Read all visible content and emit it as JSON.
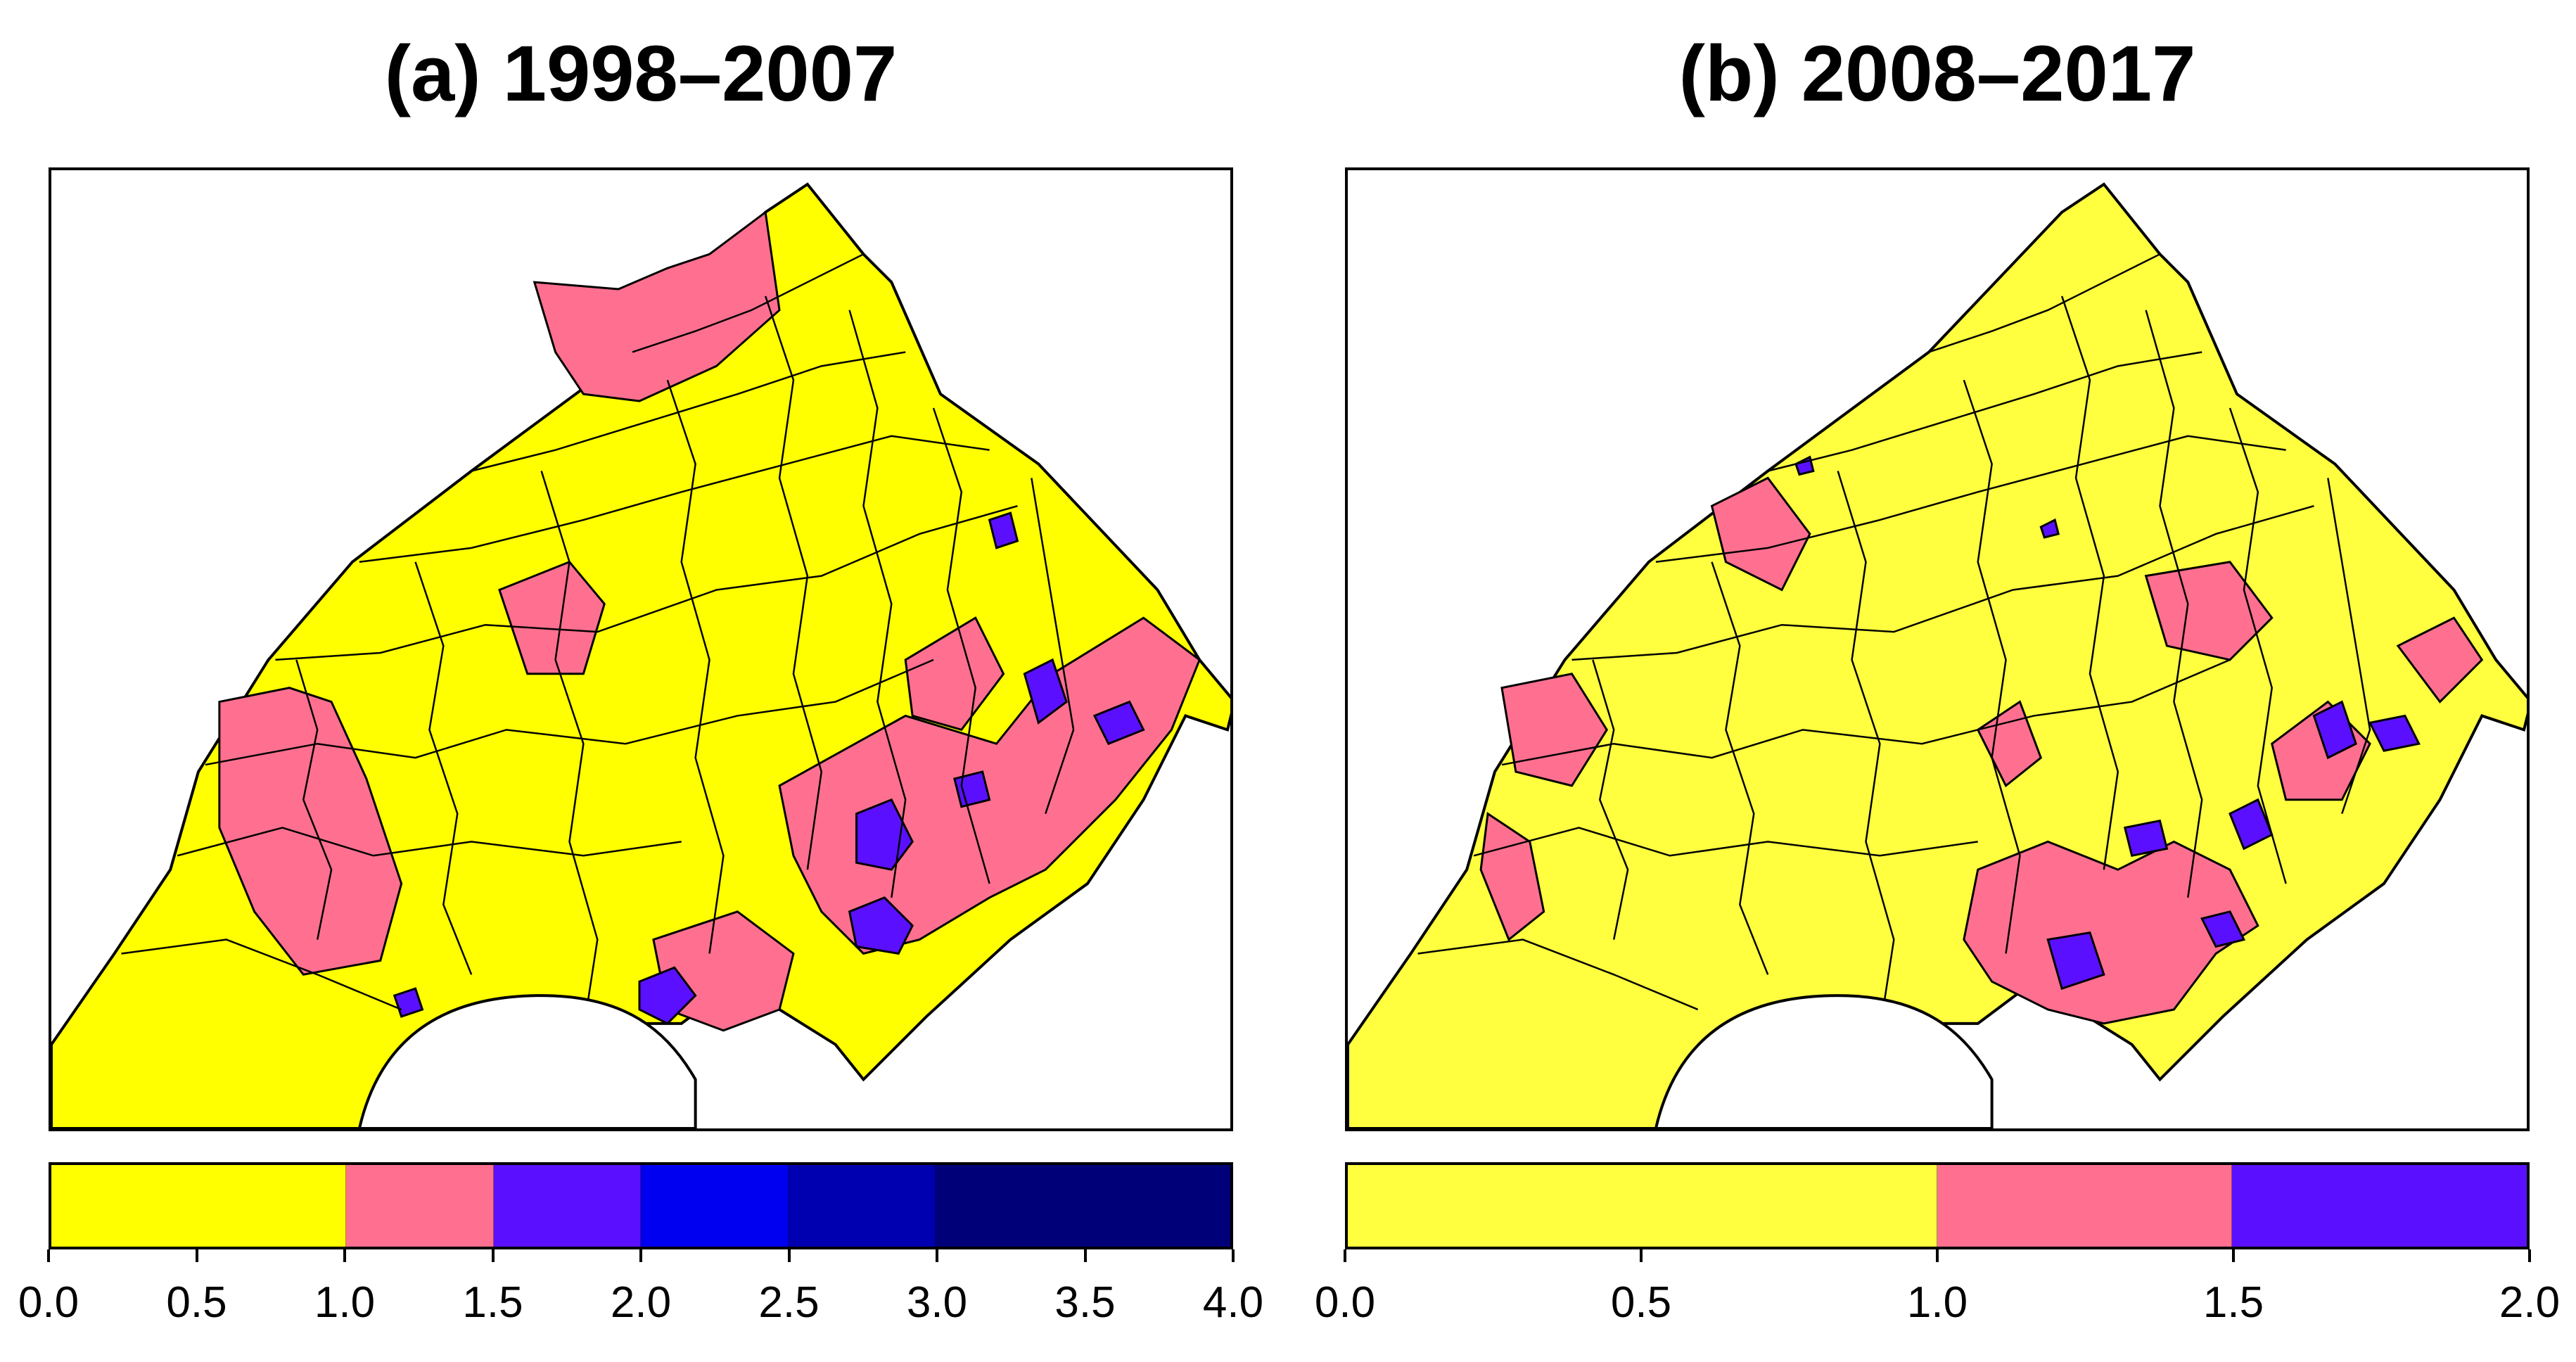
{
  "panels": [
    {
      "id": "a",
      "title": "(a) 1998–2007",
      "legend": {
        "ticks": [
          "0.0",
          "0.5",
          "1.0",
          "1.5",
          "2.0",
          "2.5",
          "3.0",
          "3.5",
          "4.0"
        ],
        "range": [
          0,
          4
        ],
        "bins": [
          {
            "from": 0.0,
            "to": 1.0,
            "color": "#ffff00"
          },
          {
            "from": 1.0,
            "to": 1.5,
            "color": "#ff7090"
          },
          {
            "from": 1.5,
            "to": 2.0,
            "color": "#5a10ff"
          },
          {
            "from": 2.0,
            "to": 2.5,
            "color": "#0000f0"
          },
          {
            "from": 2.5,
            "to": 3.0,
            "color": "#0000b0"
          },
          {
            "from": 3.0,
            "to": 4.0,
            "color": "#000078"
          }
        ]
      }
    },
    {
      "id": "b",
      "title": "(b) 2008–2017",
      "legend": {
        "ticks": [
          "0.0",
          "0.5",
          "1.0",
          "1.5",
          "2.0"
        ],
        "range": [
          0,
          2
        ],
        "bins": [
          {
            "from": 0.0,
            "to": 1.0,
            "color": "#ffff40"
          },
          {
            "from": 1.0,
            "to": 1.5,
            "color": "#ff7090"
          },
          {
            "from": 1.5,
            "to": 2.0,
            "color": "#5a10ff"
          }
        ]
      }
    }
  ]
}
